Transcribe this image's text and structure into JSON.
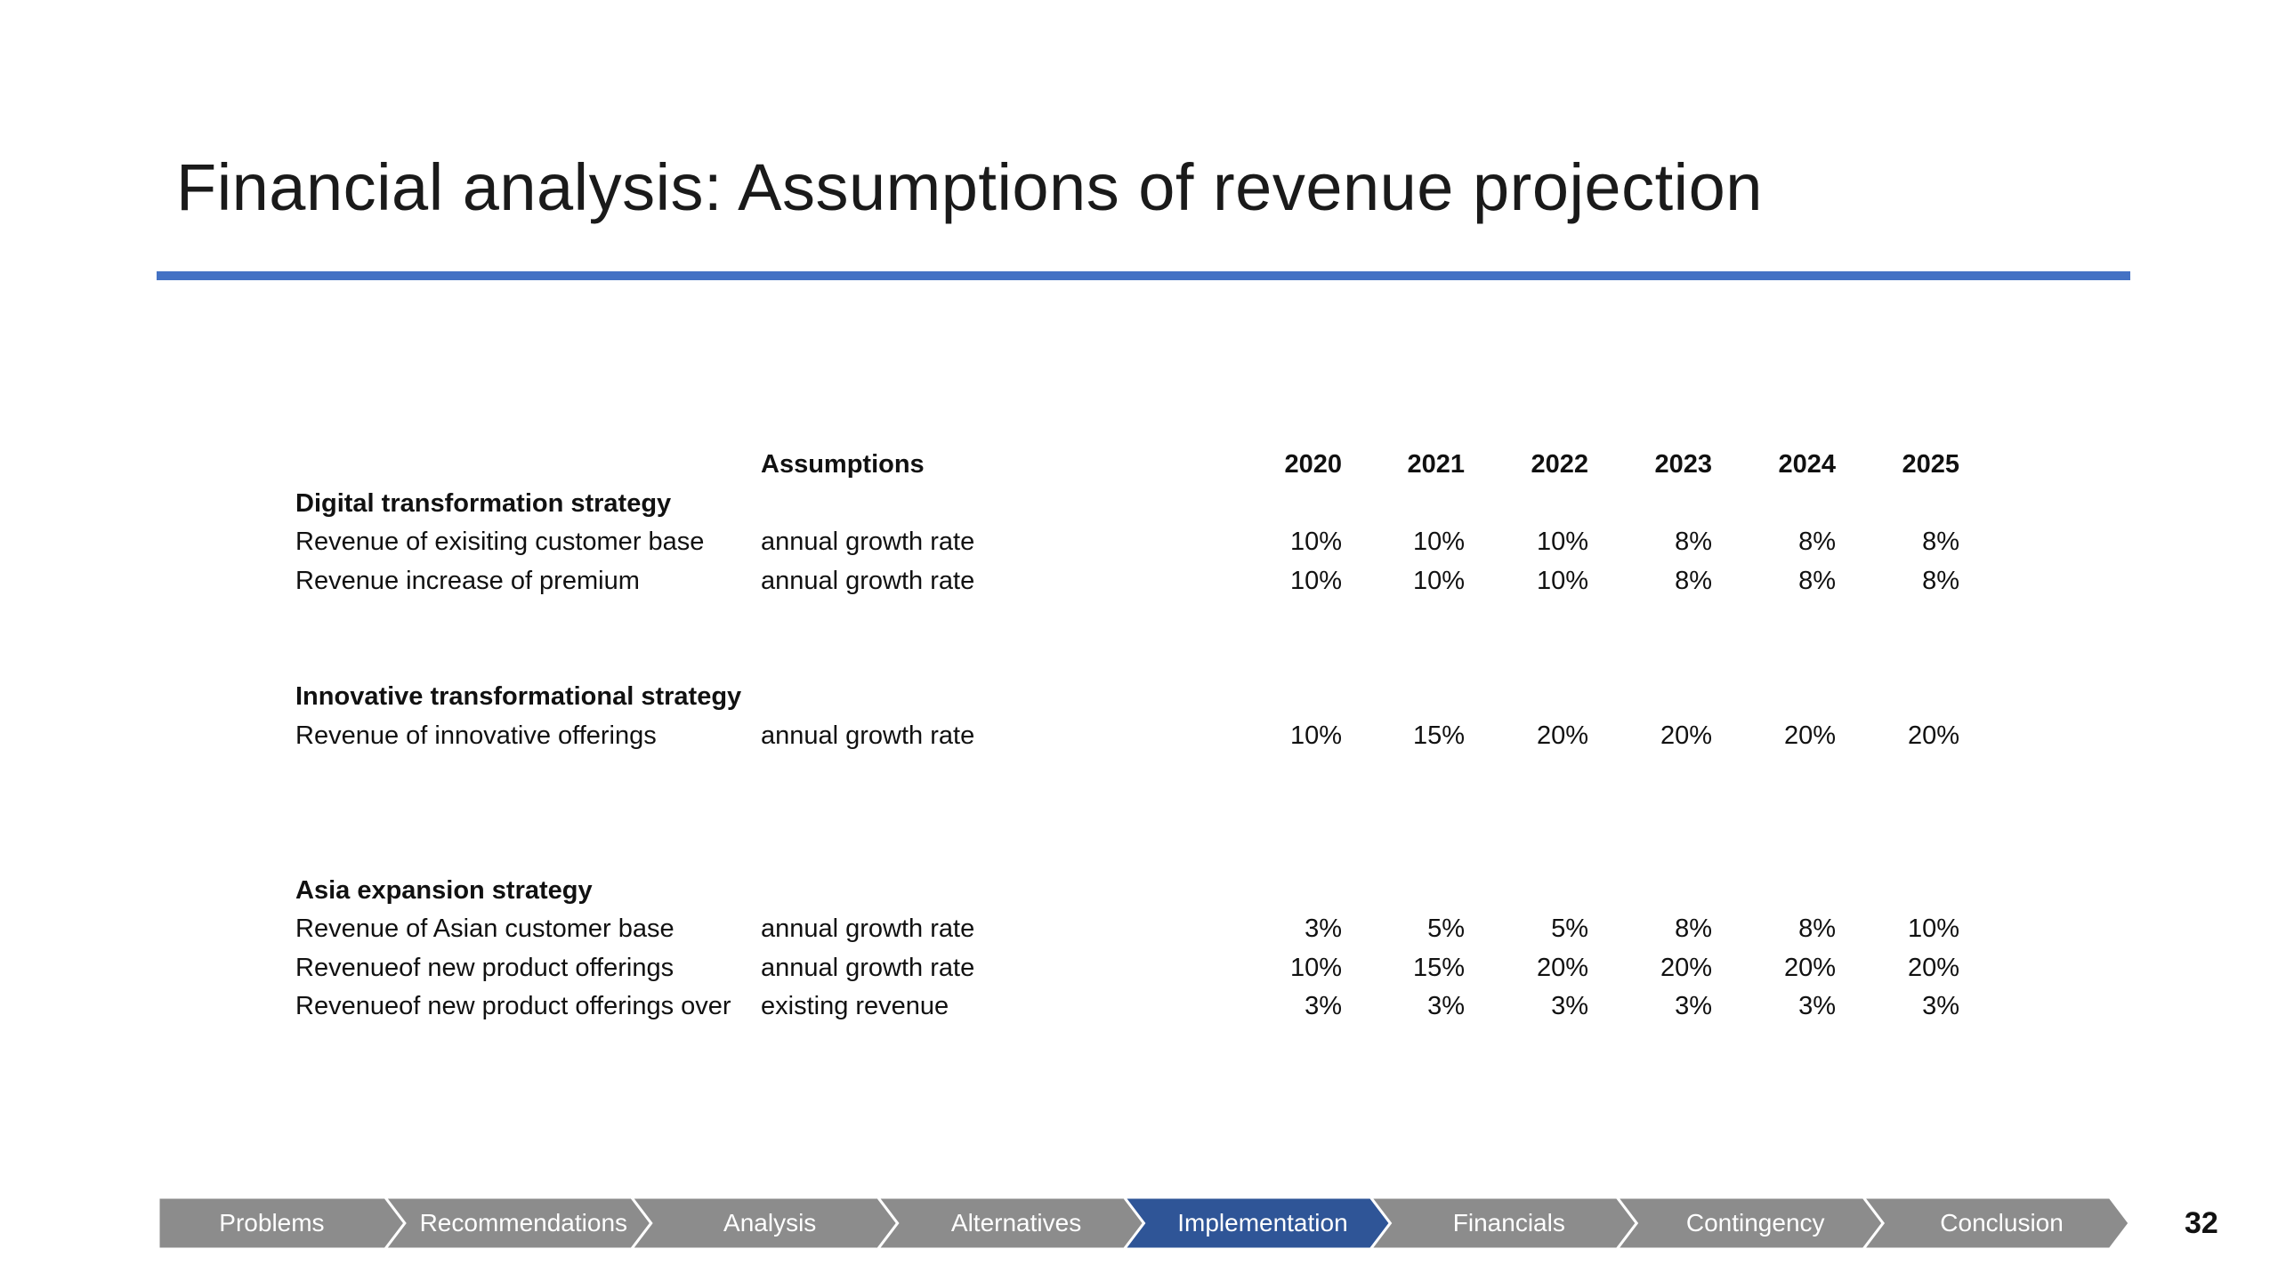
{
  "slide": {
    "title": "Financial analysis: Assumptions of revenue projection",
    "page_number": "32",
    "accent_color": "#4472C4"
  },
  "table": {
    "header_assumptions": "Assumptions",
    "years": [
      "2020",
      "2021",
      "2022",
      "2023",
      "2024",
      "2025"
    ],
    "sections": [
      {
        "heading": "Digital transformation strategy",
        "rows": [
          {
            "label": "Revenue of exisiting customer base",
            "assumption": "annual growth rate",
            "values": [
              "10%",
              "10%",
              "10%",
              "8%",
              "8%",
              "8%"
            ]
          },
          {
            "label": "Revenue increase of premium",
            "assumption": "annual growth rate",
            "values": [
              "10%",
              "10%",
              "10%",
              "8%",
              "8%",
              "8%"
            ]
          }
        ]
      },
      {
        "heading": "Innovative transformational strategy",
        "rows": [
          {
            "label": "Revenue of innovative offerings",
            "assumption": "annual growth rate",
            "values": [
              "10%",
              "15%",
              "20%",
              "20%",
              "20%",
              "20%"
            ]
          }
        ]
      },
      {
        "heading": "Asia expansion strategy",
        "rows": [
          {
            "label": "Revenue of Asian customer base",
            "assumption": "annual growth rate",
            "values": [
              "3%",
              "5%",
              "5%",
              "8%",
              "8%",
              "10%"
            ]
          },
          {
            "label": "Revenueof new product offerings",
            "assumption": "annual growth rate",
            "values": [
              "10%",
              "15%",
              "20%",
              "20%",
              "20%",
              "20%"
            ]
          },
          {
            "label": "Revenueof new product offerings over",
            "assumption": "existing revenue",
            "values": [
              "3%",
              "3%",
              "3%",
              "3%",
              "3%",
              "3%"
            ]
          }
        ]
      }
    ]
  },
  "nav": {
    "items": [
      {
        "label": "Problems",
        "active": false
      },
      {
        "label": "Recommendations",
        "active": false
      },
      {
        "label": "Analysis",
        "active": false
      },
      {
        "label": "Alternatives",
        "active": false
      },
      {
        "label": "Implementation",
        "active": true
      },
      {
        "label": "Financials",
        "active": false
      },
      {
        "label": "Contingency",
        "active": false
      },
      {
        "label": "Conclusion",
        "active": false
      }
    ],
    "inactive_color": "#8C8C8C",
    "active_color": "#2F5597"
  }
}
